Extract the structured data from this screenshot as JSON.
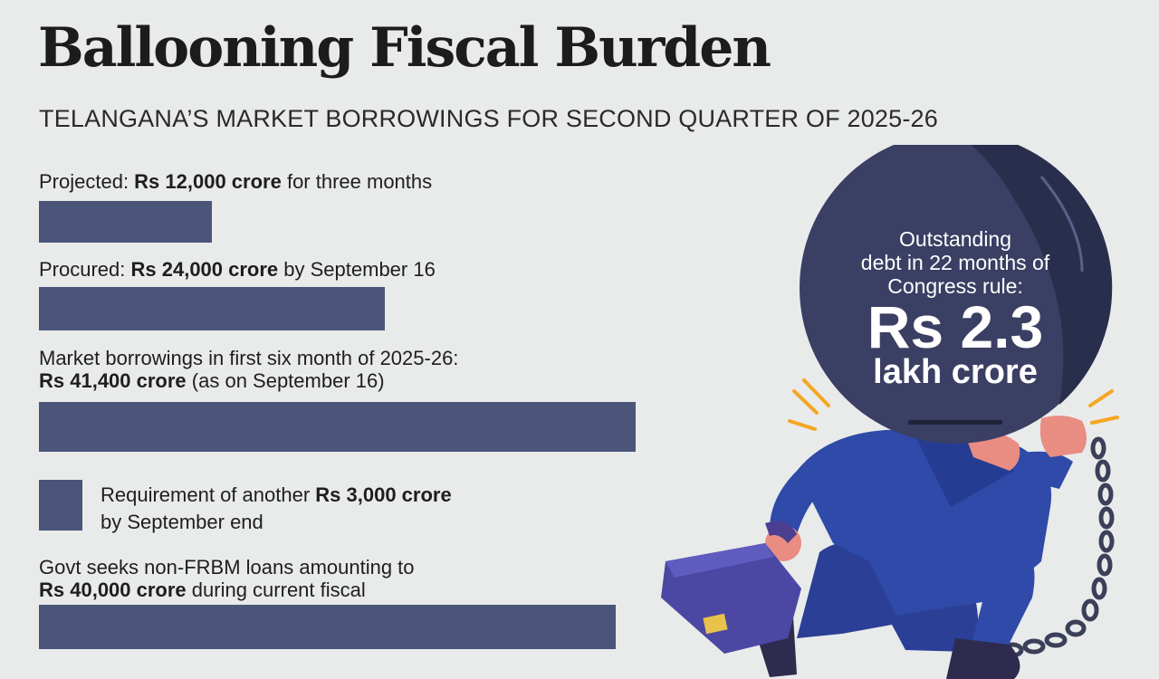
{
  "title": "Ballooning Fiscal Burden",
  "subtitle": "TELANGANA’S MARKET BORROWINGS FOR SECOND QUARTER OF 2025-26",
  "items": [
    {
      "pre": "Projected: ",
      "bold": "Rs 12,000 crore",
      "post": " for three months"
    },
    {
      "pre": "Procured: ",
      "bold": "Rs 24,000 crore",
      "post": " by September 16"
    },
    {
      "line1": "Market borrowings in first six month of 2025-26:",
      "bold": "Rs 41,400 crore",
      "post": " (as on September 16)"
    },
    {
      "pre": "Requirement of another ",
      "bold": "Rs 3,000 crore",
      "line2": "by September end"
    },
    {
      "line1": "Govt seeks non-FRBM loans amounting to",
      "bold": "Rs 40,000 crore",
      "post": " during current fiscal"
    }
  ],
  "callout": {
    "line1": "Outstanding",
    "line2": "debt in 22 months of",
    "line3": "Congress rule:",
    "amount": "Rs 2.3",
    "unit": "lakh crore"
  },
  "colors": {
    "bar": "#4b557a",
    "background": "#e9ebeb",
    "ball": "#3a3f63",
    "suit": "#2f4aa8"
  },
  "chart_data": {
    "type": "bar",
    "orientation": "horizontal",
    "categories": [
      "Projected: Rs 12,000 crore for three months",
      "Procured: Rs 24,000 crore by September 16",
      "Market borrowings in first six month of 2025-26: Rs 41,400 crore (as on September 16)",
      "Requirement of another Rs 3,000 crore by September end",
      "Govt seeks non-FRBM loans amounting to Rs 40,000 crore during current fiscal"
    ],
    "values": [
      12000,
      24000,
      41400,
      3000,
      40000
    ],
    "xlim": [
      0,
      41400
    ]
  }
}
